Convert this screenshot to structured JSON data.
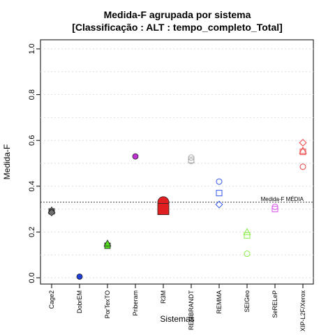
{
  "chart_data": {
    "type": "scatter",
    "title": [
      "Medida-F agrupada por sistema",
      "[Classificação : ALT : tempo_completo_Total]"
    ],
    "xlabel": "Sistemas",
    "ylabel": "Medida-F",
    "ylim": [
      0,
      1
    ],
    "yticks": [
      "0.0",
      "0.2",
      "0.4",
      "0.6",
      "0.8",
      "1.0"
    ],
    "grid": true,
    "categories": [
      "Cage2",
      "DobrEM",
      "PorTexTO",
      "Priberam",
      "R3M",
      "REMBRANDT",
      "REMMA",
      "SEIGeo",
      "SeRELeP",
      "XIP-L2F/Xerox"
    ],
    "reference_line": {
      "label": "Medida-F MÉDIA",
      "value": 0.33
    },
    "series": [
      {
        "category": "Cage2",
        "color": "#707070",
        "points": [
          {
            "shape": "circle",
            "value": 0.29
          },
          {
            "shape": "square",
            "value": 0.29
          },
          {
            "shape": "triangle",
            "value": 0.295
          },
          {
            "shape": "diamond",
            "value": 0.285
          }
        ]
      },
      {
        "category": "DobrEM",
        "color": "#1f3fd8",
        "points": [
          {
            "shape": "circle",
            "value": 0.005
          }
        ]
      },
      {
        "category": "PorTexTO",
        "color": "#55dd22",
        "points": [
          {
            "shape": "circle",
            "value": 0.14
          },
          {
            "shape": "square",
            "value": 0.14
          },
          {
            "shape": "triangle",
            "value": 0.15
          }
        ]
      },
      {
        "category": "Priberam",
        "color": "#c030d0",
        "points": [
          {
            "shape": "circle",
            "value": 0.53
          }
        ]
      },
      {
        "category": "R3M",
        "color": "#e02020",
        "points": [
          {
            "shape": "circle",
            "value": 0.33
          },
          {
            "shape": "square",
            "value": 0.3
          }
        ]
      },
      {
        "category": "REMBRANDT",
        "color": "#aaaaaa",
        "points": [
          {
            "shape": "circle",
            "value": 0.525
          },
          {
            "shape": "circle",
            "value": 0.51
          },
          {
            "shape": "square",
            "value": 0.515
          }
        ]
      },
      {
        "category": "REMMA",
        "color": "#3355ee",
        "points": [
          {
            "shape": "circle",
            "value": 0.42
          },
          {
            "shape": "square",
            "value": 0.37
          },
          {
            "shape": "diamond",
            "value": 0.32
          }
        ]
      },
      {
        "category": "SEIGeo",
        "color": "#88ee44",
        "points": [
          {
            "shape": "triangle",
            "value": 0.2
          },
          {
            "shape": "square",
            "value": 0.185
          },
          {
            "shape": "circle",
            "value": 0.105
          }
        ]
      },
      {
        "category": "SeRELeP",
        "color": "#dd55ee",
        "points": [
          {
            "shape": "circle",
            "value": 0.31
          },
          {
            "shape": "square",
            "value": 0.3
          }
        ]
      },
      {
        "category": "XIP-L2F/Xerox",
        "color": "#ee4444",
        "points": [
          {
            "shape": "diamond",
            "value": 0.59
          },
          {
            "shape": "triangle",
            "value": 0.555
          },
          {
            "shape": "square",
            "value": 0.55
          },
          {
            "shape": "circle",
            "value": 0.485
          }
        ]
      }
    ],
    "filled": {
      "Cage2": true,
      "DobrEM": true,
      "PorTexTO": true,
      "Priberam": true,
      "R3M": true
    }
  }
}
